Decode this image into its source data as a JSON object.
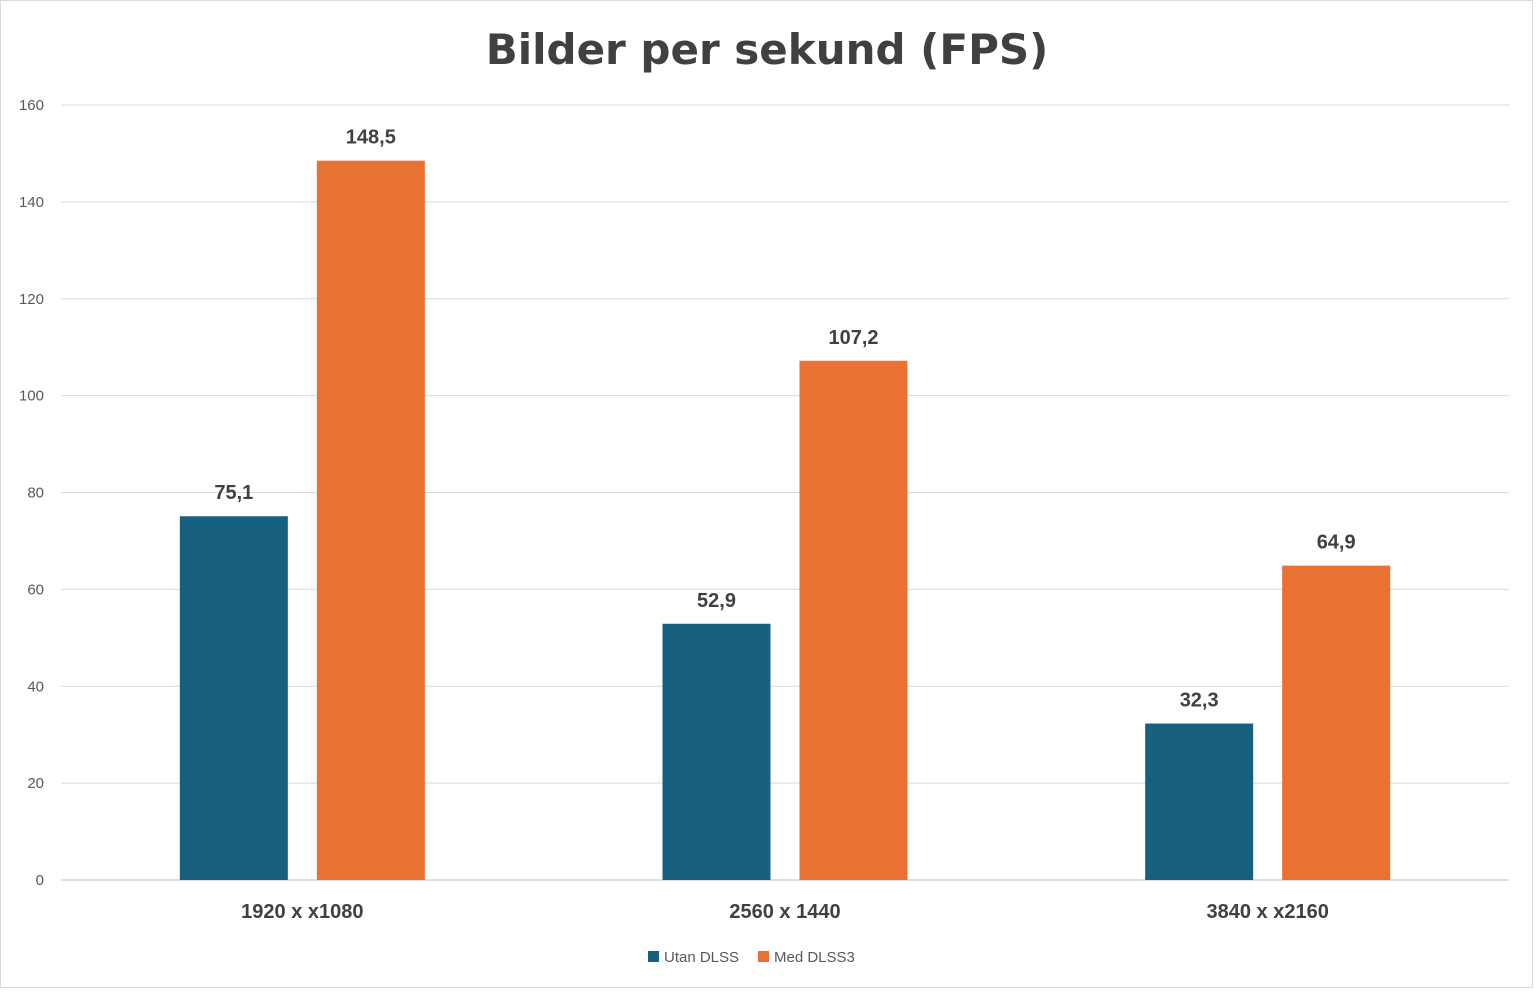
{
  "chart_data": {
    "type": "bar",
    "title": "Bilder per sekund (FPS)",
    "xlabel": "",
    "ylabel": "",
    "ylim": [
      0,
      160
    ],
    "yticks": [
      0,
      20,
      40,
      60,
      80,
      100,
      120,
      140,
      160
    ],
    "grid": true,
    "legend_position": "bottom",
    "categories": [
      "1920 x x1080",
      "2560 x 1440",
      "3840 x x2160"
    ],
    "series": [
      {
        "name": "Utan DLSS",
        "color": "#17607f",
        "values": [
          75.1,
          52.9,
          32.3
        ],
        "labels": [
          "75,1",
          "52,9",
          "32,3"
        ]
      },
      {
        "name": "Med DLSS3",
        "color": "#e97132",
        "values": [
          148.5,
          107.2,
          64.9
        ],
        "labels": [
          "148,5",
          "107,2",
          "64,9"
        ]
      }
    ]
  }
}
